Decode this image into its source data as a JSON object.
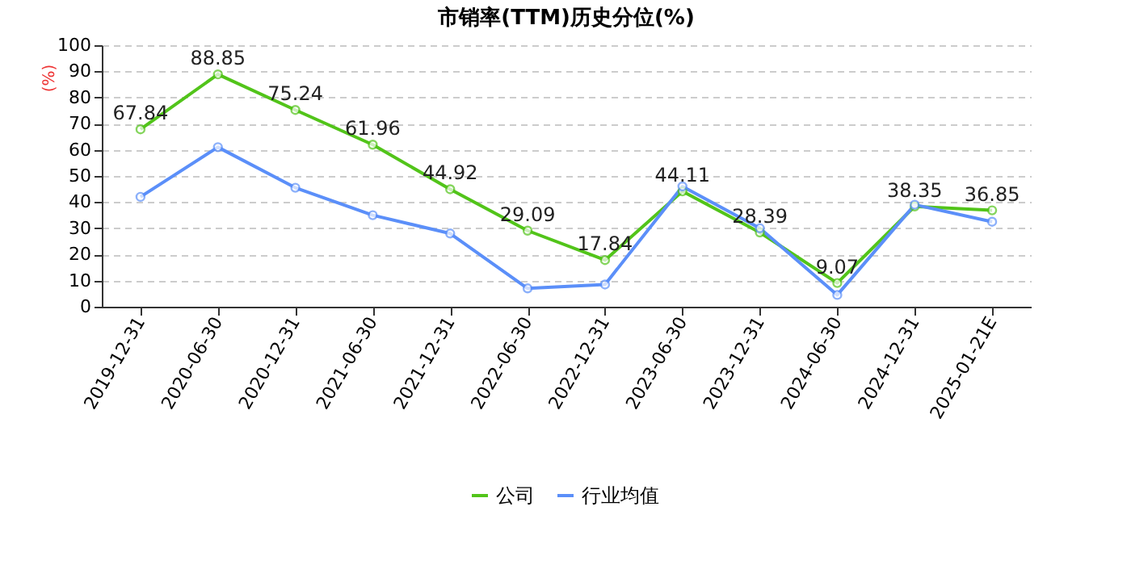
{
  "chart_data": {
    "type": "line",
    "title": "市销率(TTM)历史分位(%)",
    "ylabel": "(%)",
    "categories": [
      "2019-12-31",
      "2020-06-30",
      "2020-12-31",
      "2021-06-30",
      "2021-12-31",
      "2022-06-30",
      "2022-12-31",
      "2023-06-30",
      "2023-12-31",
      "2024-06-30",
      "2024-12-31",
      "2025-01-21E"
    ],
    "series": [
      {
        "name": "公司",
        "color": "#52c41a",
        "values": [
          67.84,
          88.85,
          75.24,
          61.96,
          44.92,
          29.09,
          17.84,
          44.11,
          28.39,
          9.07,
          38.35,
          36.85
        ],
        "value_labels": [
          "67.84",
          "88.85",
          "75.24",
          "61.96",
          "44.92",
          "29.09",
          "17.84",
          "44.11",
          "28.39",
          "9.07",
          "38.35",
          "36.85"
        ]
      },
      {
        "name": "行业均值",
        "color": "#5b8ff9",
        "values": [
          42,
          61,
          45.5,
          35,
          28,
          7,
          8.5,
          46,
          30,
          4.5,
          39,
          32.5
        ]
      }
    ],
    "ylim": [
      0,
      100
    ],
    "yticks": [
      0,
      10,
      20,
      30,
      40,
      50,
      60,
      70,
      80,
      90,
      100
    ],
    "grid": "y",
    "legend": "bottom",
    "marker": "circle",
    "line_style": "solid"
  }
}
